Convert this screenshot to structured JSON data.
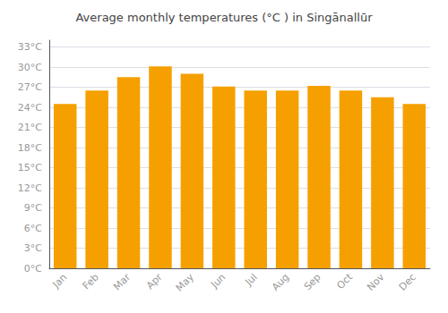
{
  "chart_data": {
    "type": "bar",
    "title": "Average monthly temperatures (°C ) in Singānallūr",
    "categories": [
      "Jan",
      "Feb",
      "Mar",
      "Apr",
      "May",
      "Jun",
      "Jul",
      "Aug",
      "Sep",
      "Oct",
      "Nov",
      "Dec"
    ],
    "values": [
      24.5,
      26.5,
      28.5,
      30.1,
      29.0,
      27.1,
      26.5,
      26.5,
      27.2,
      26.5,
      25.5,
      24.5
    ],
    "color": "#F5A000",
    "ylim": [
      0,
      34
    ],
    "yticks": [
      {
        "value": 0,
        "label": "0°C"
      },
      {
        "value": 3,
        "label": "3°C"
      },
      {
        "value": 6,
        "label": "6°C"
      },
      {
        "value": 9,
        "label": "9°C"
      },
      {
        "value": 12,
        "label": "12°C"
      },
      {
        "value": 15,
        "label": "15°C"
      },
      {
        "value": 18,
        "label": "18°C"
      },
      {
        "value": 21,
        "label": "21°C"
      },
      {
        "value": 24,
        "label": "24°C"
      },
      {
        "value": 27,
        "label": "27°C"
      },
      {
        "value": 30,
        "label": "30°C"
      },
      {
        "value": 33,
        "label": "33°C"
      }
    ],
    "grid": true
  }
}
